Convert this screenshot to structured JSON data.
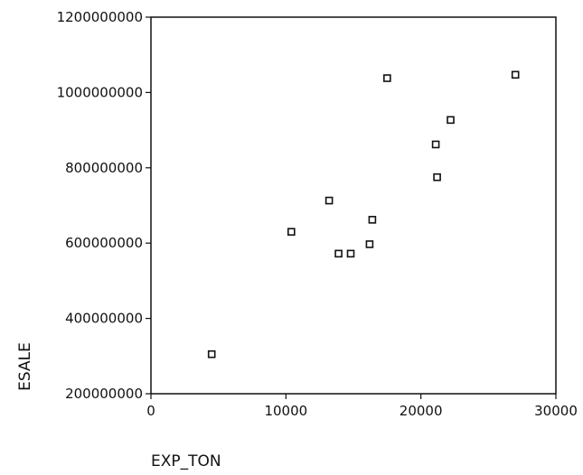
{
  "chart_data": {
    "type": "scatter",
    "title": "",
    "xlabel": "EXP_TON",
    "ylabel": "ESALE",
    "xlim": [
      0,
      30000
    ],
    "ylim": [
      200000000,
      1200000000
    ],
    "x_ticks": [
      0,
      10000,
      20000,
      30000
    ],
    "x_tick_labels": [
      "0",
      "10000",
      "20000",
      "30000"
    ],
    "y_ticks": [
      200000000,
      400000000,
      600000000,
      800000000,
      1000000000,
      1200000000
    ],
    "y_tick_labels": [
      "200000000",
      "400000000",
      "600000000",
      "800000000",
      "1000000000",
      "1200000000"
    ],
    "grid": false,
    "marker": "open-square",
    "points": [
      {
        "x": 4500,
        "y": 305000000
      },
      {
        "x": 10400,
        "y": 630000000
      },
      {
        "x": 13200,
        "y": 713000000
      },
      {
        "x": 13900,
        "y": 572000000
      },
      {
        "x": 14800,
        "y": 572000000
      },
      {
        "x": 16200,
        "y": 597000000
      },
      {
        "x": 16400,
        "y": 662000000
      },
      {
        "x": 17500,
        "y": 1038000000
      },
      {
        "x": 21100,
        "y": 862000000
      },
      {
        "x": 21200,
        "y": 775000000
      },
      {
        "x": 22200,
        "y": 927000000
      },
      {
        "x": 27000,
        "y": 1047000000
      }
    ]
  }
}
